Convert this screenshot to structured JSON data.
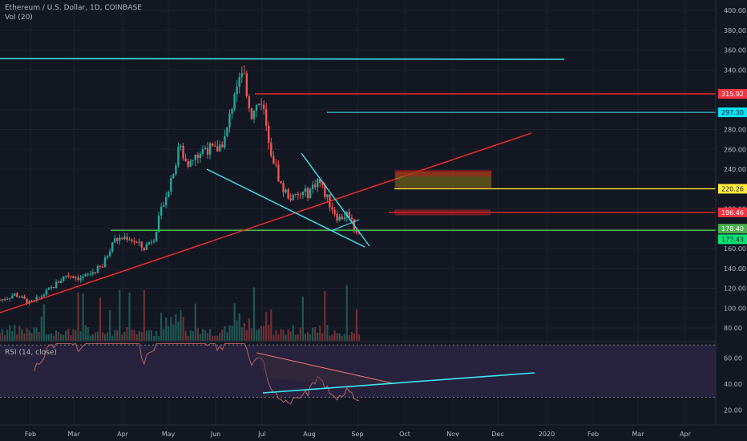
{
  "header": {
    "title": "Ethereum / U.S. Dollar, 1D, COINBASE",
    "volume_label": "Vol (20)"
  },
  "rsi": {
    "label": "RSI (14, close)",
    "ticks": [
      60,
      40,
      20
    ],
    "upper_band": 70,
    "lower_band": 30
  },
  "price_axis": {
    "ticks": [
      400,
      380,
      360,
      340,
      300,
      280,
      260,
      240,
      200,
      180,
      160,
      140,
      120,
      100,
      80
    ],
    "min": 60,
    "max": 410
  },
  "time_axis": {
    "labels": [
      "Feb",
      "Mar",
      "Apr",
      "May",
      "Jun",
      "Jul",
      "Aug",
      "Sep",
      "Oct",
      "Nov",
      "Dec",
      "2020",
      "Feb",
      "Mar",
      "Apr"
    ]
  },
  "price_badges": [
    {
      "text": "315.92",
      "color": "#f23645"
    },
    {
      "text": "297.30",
      "color": "#00e5ff"
    },
    {
      "text": "220.26",
      "color": "#ffeb3b"
    },
    {
      "text": "196.46",
      "color": "#f23645"
    },
    {
      "text": "178.40",
      "color": "#4caf50"
    },
    {
      "text": "177.43",
      "color": "#00e676"
    }
  ],
  "colors": {
    "background": "#131722",
    "up": "#26a69a",
    "down": "#ef5350",
    "cyan": "#3ee5f0",
    "red": "#ff2a2a",
    "green": "#4caf50",
    "yellow": "#ffeb3b",
    "rsi_line": "#b2636a",
    "rsi_fill": "#2a2440"
  },
  "chart_data": {
    "type": "candlestick",
    "title": "Ethereum / U.S. Dollar, 1D, COINBASE",
    "symbol": "ETH/USD",
    "interval": "1D",
    "exchange": "COINBASE",
    "ylim": [
      60,
      410
    ],
    "key_prices": [
      {
        "axis": "y",
        "value": 350.0,
        "color": "#3ee5f0"
      },
      {
        "axis": "y",
        "value": 315.92,
        "color": "#ff2a2a"
      },
      {
        "axis": "y",
        "value": 297.3,
        "color": "#3ee5f0"
      },
      {
        "axis": "y",
        "value": 220.26,
        "color": "#ffeb3b"
      },
      {
        "axis": "y",
        "value": 196.46,
        "color": "#ff2a2a"
      },
      {
        "axis": "y",
        "value": 178.4,
        "color": "#4caf50"
      }
    ],
    "anchors": [
      {
        "m": 0.0,
        "p": 108
      },
      {
        "m": 0.3,
        "p": 114
      },
      {
        "m": 0.6,
        "p": 104
      },
      {
        "m": 1.0,
        "p": 120
      },
      {
        "m": 1.3,
        "p": 134
      },
      {
        "m": 1.6,
        "p": 130
      },
      {
        "m": 2.0,
        "p": 142
      },
      {
        "m": 2.2,
        "p": 168
      },
      {
        "m": 2.5,
        "p": 172
      },
      {
        "m": 2.8,
        "p": 160
      },
      {
        "m": 3.0,
        "p": 172
      },
      {
        "m": 3.3,
        "p": 225
      },
      {
        "m": 3.5,
        "p": 262
      },
      {
        "m": 3.7,
        "p": 245
      },
      {
        "m": 4.0,
        "p": 262
      },
      {
        "m": 4.2,
        "p": 258
      },
      {
        "m": 4.4,
        "p": 272
      },
      {
        "m": 4.6,
        "p": 325
      },
      {
        "m": 4.75,
        "p": 335
      },
      {
        "m": 4.9,
        "p": 295
      },
      {
        "m": 5.1,
        "p": 310
      },
      {
        "m": 5.3,
        "p": 255
      },
      {
        "m": 5.5,
        "p": 220
      },
      {
        "m": 5.7,
        "p": 210
      },
      {
        "m": 5.9,
        "p": 215
      },
      {
        "m": 6.0,
        "p": 216
      },
      {
        "m": 6.2,
        "p": 230
      },
      {
        "m": 6.4,
        "p": 208
      },
      {
        "m": 6.6,
        "p": 190
      },
      {
        "m": 6.8,
        "p": 196
      },
      {
        "m": 6.9,
        "p": 182
      },
      {
        "m": 7.0,
        "p": 176
      }
    ],
    "volume": {
      "series": "Vol (20)",
      "max_value": 1.0
    },
    "rsi": {
      "period": 14,
      "source": "close",
      "ylim": [
        10,
        72
      ]
    }
  }
}
